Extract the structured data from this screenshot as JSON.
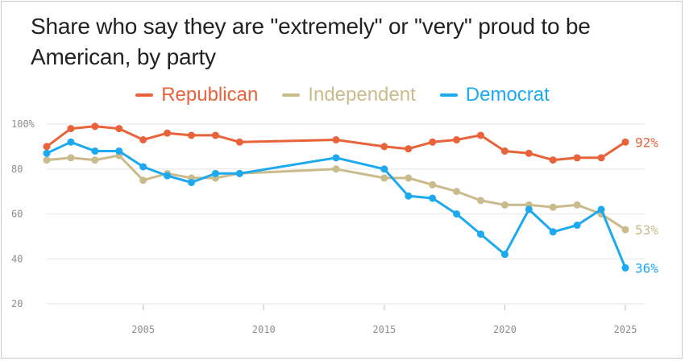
{
  "title": "Share who say they are \"extremely\" or \"very\" proud to be American, by party",
  "chart_data": {
    "type": "line",
    "xlim": [
      2001,
      2025
    ],
    "ylim": [
      20,
      100
    ],
    "y_ticks": [
      20,
      40,
      60,
      80,
      100
    ],
    "y_tick_labels": [
      "20",
      "40",
      "60",
      "80",
      "100%"
    ],
    "x_ticks": [
      2005,
      2010,
      2015,
      2020,
      2025
    ],
    "x_tick_labels": [
      "2005",
      "2010",
      "2015",
      "2020",
      "2025"
    ],
    "grid": "horizontal",
    "legend_position": "top-center",
    "series": [
      {
        "name": "Republican",
        "color": "#e8623a",
        "end_label": "92%",
        "x": [
          2001,
          2002,
          2003,
          2004,
          2005,
          2006,
          2007,
          2008,
          2009,
          2013,
          2015,
          2016,
          2017,
          2018,
          2019,
          2020,
          2021,
          2022,
          2023,
          2024,
          2025
        ],
        "y": [
          90,
          98,
          99,
          98,
          93,
          96,
          95,
          95,
          92,
          93,
          90,
          89,
          92,
          93,
          95,
          88,
          87,
          84,
          85,
          85,
          92
        ]
      },
      {
        "name": "Independent",
        "color": "#c9bb8c",
        "end_label": "53%",
        "x": [
          2001,
          2002,
          2003,
          2004,
          2005,
          2006,
          2007,
          2008,
          2009,
          2013,
          2015,
          2016,
          2017,
          2018,
          2019,
          2020,
          2021,
          2022,
          2023,
          2024,
          2025
        ],
        "y": [
          84,
          85,
          84,
          86,
          75,
          78,
          76,
          76,
          78,
          80,
          76,
          76,
          73,
          70,
          66,
          64,
          64,
          63,
          64,
          60,
          53
        ]
      },
      {
        "name": "Democrat",
        "color": "#1ca9f0",
        "end_label": "36%",
        "x": [
          2001,
          2002,
          2003,
          2004,
          2005,
          2006,
          2007,
          2008,
          2009,
          2013,
          2015,
          2016,
          2017,
          2018,
          2019,
          2020,
          2021,
          2022,
          2023,
          2024,
          2025
        ],
        "y": [
          87,
          92,
          88,
          88,
          81,
          77,
          74,
          78,
          78,
          85,
          80,
          68,
          67,
          60,
          51,
          42,
          62,
          52,
          55,
          62,
          36
        ]
      }
    ]
  }
}
